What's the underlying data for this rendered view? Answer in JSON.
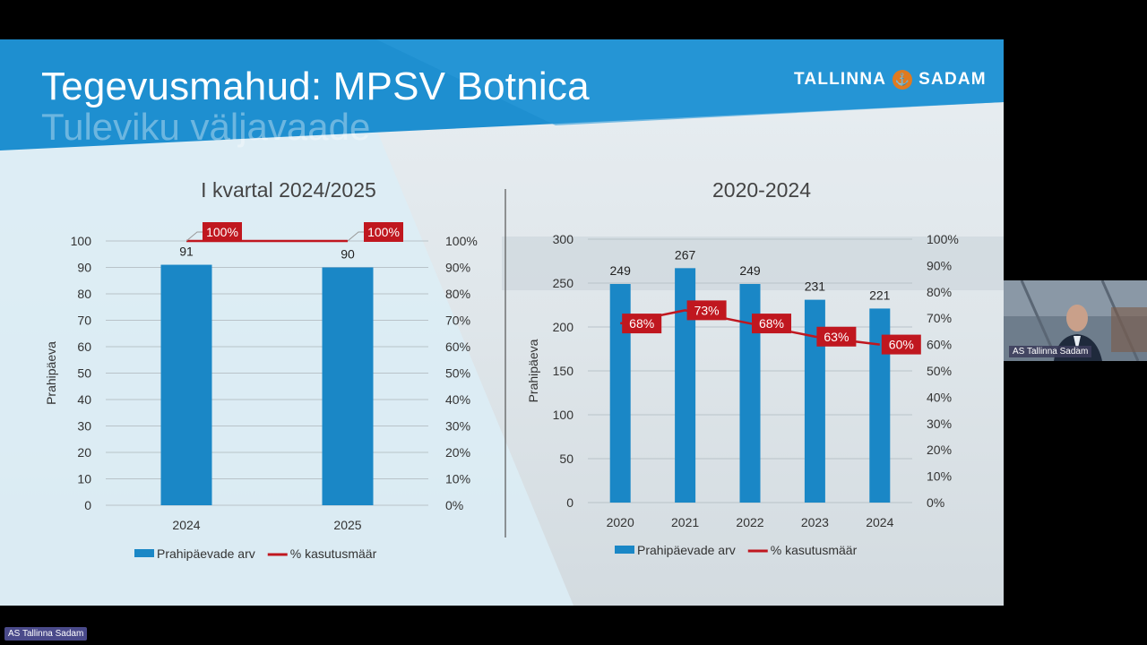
{
  "slide": {
    "title": "Tegevusmahud: MPSV Botnica",
    "subtitle": "Tuleviku väljavaade",
    "logo_left": "TALLINNA",
    "logo_right": "SADAM",
    "logo_icon": "anchor-icon"
  },
  "participant": {
    "video_name": "AS Tallinna Sadam",
    "bottom_name": "AS Tallinna Sadam"
  },
  "colors": {
    "bar": "#1a87c6",
    "line": "#c0171f",
    "label_bg": "#c0171f",
    "header": "#1e8fd0"
  },
  "chart_data": [
    {
      "type": "bar",
      "title": "I kvartal 2024/2025",
      "ylabel": "Prahipäeva",
      "categories": [
        "2024",
        "2025"
      ],
      "ylim": [
        0,
        100
      ],
      "yticks": [
        0,
        10,
        20,
        30,
        40,
        50,
        60,
        70,
        80,
        90,
        100
      ],
      "y2lim": [
        0,
        100
      ],
      "y2ticks": [
        "0%",
        "10%",
        "20%",
        "30%",
        "40%",
        "50%",
        "60%",
        "70%",
        "80%",
        "90%",
        "100%"
      ],
      "series": [
        {
          "name": "Prahipäevade arv",
          "kind": "bar",
          "values": [
            91,
            90
          ],
          "labels": [
            "91",
            "90"
          ]
        },
        {
          "name": "% kasutusmäär",
          "kind": "line",
          "axis": "right",
          "values": [
            100,
            100
          ],
          "labels": [
            "100%",
            "100%"
          ]
        }
      ],
      "legend": "bottom",
      "grid": true
    },
    {
      "type": "bar",
      "title": "2020-2024",
      "ylabel": "Prahipäeva",
      "categories": [
        "2020",
        "2021",
        "2022",
        "2023",
        "2024"
      ],
      "ylim": [
        0,
        300
      ],
      "yticks": [
        0,
        50,
        100,
        150,
        200,
        250,
        300
      ],
      "y2lim": [
        0,
        100
      ],
      "y2ticks": [
        "0%",
        "10%",
        "20%",
        "30%",
        "40%",
        "50%",
        "60%",
        "70%",
        "80%",
        "90%",
        "100%"
      ],
      "series": [
        {
          "name": "Prahipäevade arv",
          "kind": "bar",
          "values": [
            249,
            267,
            249,
            231,
            221
          ],
          "labels": [
            "249",
            "267",
            "249",
            "231",
            "221"
          ]
        },
        {
          "name": "% kasutusmäär",
          "kind": "line",
          "axis": "right",
          "values": [
            68,
            73,
            68,
            63,
            60
          ],
          "labels": [
            "68%",
            "73%",
            "68%",
            "63%",
            "60%"
          ]
        }
      ],
      "legend": "bottom",
      "grid": true
    }
  ]
}
